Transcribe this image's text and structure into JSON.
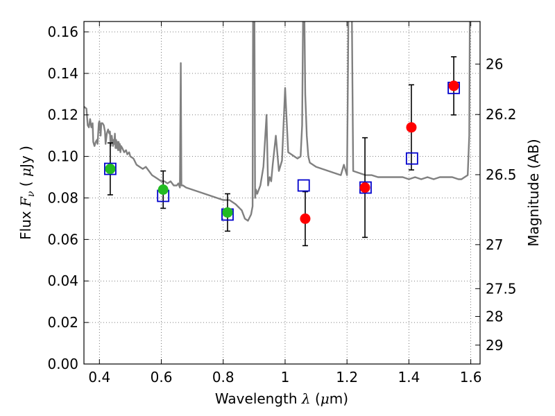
{
  "chart_data": {
    "type": "scatter",
    "xlabel": {
      "prefix": "Wavelength  ",
      "math": "λ",
      "suffix_open": " (",
      "unit_math": "μ",
      "unit_text": "m)"
    },
    "ylabel": {
      "prefix": "Flux  ",
      "math": "F",
      "sub": "ν",
      "suffix_open": "  ( ",
      "unit_math": "μ",
      "unit_text": "Jy )"
    },
    "y2label": "Magnitude (AB)",
    "xlim": [
      0.35,
      1.63
    ],
    "ylim": [
      0.0,
      0.165
    ],
    "grid": true,
    "grid_style": "dotted",
    "x_ticks": [
      0.4,
      0.6,
      0.8,
      1.0,
      1.2,
      1.4,
      1.6
    ],
    "x_tick_labels": [
      "0.4",
      "0.6",
      "0.8",
      "1",
      "1.2",
      "1.4",
      "1.6"
    ],
    "y_ticks": [
      0.0,
      0.02,
      0.04,
      0.06,
      0.08,
      0.1,
      0.12,
      0.14,
      0.16
    ],
    "y_tick_labels": [
      "0.00",
      "0.02",
      "0.04",
      "0.06",
      "0.08",
      "0.10",
      "0.12",
      "0.14",
      "0.16"
    ],
    "y2_ticks": [
      {
        "label": "26",
        "flux": 0.1445
      },
      {
        "label": "26.2",
        "flux": 0.1202
      },
      {
        "label": "26.5",
        "flux": 0.0912
      },
      {
        "label": "27",
        "flux": 0.0575
      },
      {
        "label": "27.5",
        "flux": 0.0363
      },
      {
        "label": "28",
        "flux": 0.0229
      },
      {
        "label": "29",
        "flux": 0.0091
      }
    ],
    "model_spectrum": {
      "color": "#808080",
      "x": [
        0.35,
        0.358,
        0.362,
        0.366,
        0.37,
        0.374,
        0.378,
        0.38,
        0.384,
        0.388,
        0.392,
        0.394,
        0.398,
        0.4,
        0.404,
        0.406,
        0.41,
        0.414,
        0.418,
        0.42,
        0.424,
        0.428,
        0.432,
        0.434,
        0.436,
        0.44,
        0.444,
        0.446,
        0.448,
        0.45,
        0.452,
        0.454,
        0.456,
        0.458,
        0.46,
        0.462,
        0.464,
        0.466,
        0.468,
        0.47,
        0.474,
        0.48,
        0.486,
        0.49,
        0.496,
        0.5,
        0.51,
        0.52,
        0.53,
        0.54,
        0.55,
        0.56,
        0.57,
        0.58,
        0.59,
        0.6,
        0.61,
        0.62,
        0.63,
        0.64,
        0.65,
        0.655,
        0.66,
        0.663,
        0.665,
        0.67,
        0.68,
        0.7,
        0.72,
        0.74,
        0.76,
        0.78,
        0.8,
        0.82,
        0.84,
        0.86,
        0.87,
        0.88,
        0.89,
        0.895,
        0.897,
        0.9,
        0.903,
        0.906,
        0.91,
        0.92,
        0.93,
        0.94,
        0.945,
        0.95,
        0.955,
        0.96,
        0.97,
        0.98,
        0.99,
        1.0,
        1.01,
        1.02,
        1.03,
        1.04,
        1.05,
        1.055,
        1.06,
        1.065,
        1.07,
        1.075,
        1.08,
        1.09,
        1.1,
        1.12,
        1.14,
        1.16,
        1.18,
        1.19,
        1.2,
        1.203,
        1.206,
        1.21,
        1.212,
        1.214,
        1.22,
        1.24,
        1.26,
        1.28,
        1.3,
        1.32,
        1.34,
        1.36,
        1.38,
        1.4,
        1.42,
        1.44,
        1.46,
        1.48,
        1.5,
        1.52,
        1.54,
        1.56,
        1.57,
        1.58,
        1.59,
        1.595,
        1.598,
        1.6,
        1.605,
        1.61,
        1.62,
        1.63
      ],
      "y": [
        0.124,
        0.123,
        0.115,
        0.114,
        0.118,
        0.114,
        0.116,
        0.107,
        0.105,
        0.107,
        0.108,
        0.106,
        0.116,
        0.117,
        0.11,
        0.116,
        0.116,
        0.115,
        0.112,
        0.106,
        0.111,
        0.113,
        0.111,
        0.112,
        0.105,
        0.11,
        0.105,
        0.108,
        0.106,
        0.111,
        0.104,
        0.108,
        0.104,
        0.107,
        0.103,
        0.107,
        0.103,
        0.106,
        0.102,
        0.105,
        0.104,
        0.102,
        0.103,
        0.101,
        0.102,
        0.1,
        0.099,
        0.096,
        0.095,
        0.094,
        0.095,
        0.093,
        0.091,
        0.09,
        0.089,
        0.088,
        0.088,
        0.087,
        0.088,
        0.086,
        0.086,
        0.087,
        0.085,
        0.145,
        0.086,
        0.086,
        0.085,
        0.084,
        0.083,
        0.082,
        0.081,
        0.08,
        0.079,
        0.079,
        0.077,
        0.074,
        0.07,
        0.069,
        0.072,
        0.076,
        0.2,
        0.2,
        0.08,
        0.084,
        0.082,
        0.086,
        0.095,
        0.12,
        0.086,
        0.09,
        0.088,
        0.096,
        0.11,
        0.093,
        0.098,
        0.133,
        0.102,
        0.101,
        0.1,
        0.099,
        0.1,
        0.115,
        0.2,
        0.13,
        0.11,
        0.1,
        0.097,
        0.096,
        0.095,
        0.094,
        0.093,
        0.092,
        0.091,
        0.096,
        0.091,
        0.138,
        0.2,
        0.2,
        0.2,
        0.2,
        0.093,
        0.092,
        0.091,
        0.091,
        0.09,
        0.09,
        0.09,
        0.09,
        0.09,
        0.089,
        0.09,
        0.089,
        0.09,
        0.089,
        0.09,
        0.09,
        0.09,
        0.089,
        0.089,
        0.09,
        0.091,
        0.11,
        0.2,
        0.2,
        0.2,
        0.2,
        0.2,
        0.2
      ]
    },
    "model_photometry": {
      "color": "#0000cc",
      "marker": "open-square",
      "points": [
        {
          "x": 0.435,
          "y": 0.094
        },
        {
          "x": 0.606,
          "y": 0.081
        },
        {
          "x": 0.814,
          "y": 0.072
        },
        {
          "x": 1.06,
          "y": 0.086
        },
        {
          "x": 1.26,
          "y": 0.085
        },
        {
          "x": 1.41,
          "y": 0.099
        },
        {
          "x": 1.545,
          "y": 0.133
        }
      ]
    },
    "observed_optical": {
      "color": "#22bb22",
      "marker": "filled-circle",
      "points": [
        {
          "x": 0.435,
          "y": 0.094,
          "err": 0.0125
        },
        {
          "x": 0.606,
          "y": 0.084,
          "err": 0.009
        },
        {
          "x": 0.814,
          "y": 0.073,
          "err": 0.009
        }
      ]
    },
    "observed_nir": {
      "color": "#ff0000",
      "marker": "filled-circle",
      "points": [
        {
          "x": 1.065,
          "y": 0.07,
          "err": 0.013
        },
        {
          "x": 1.258,
          "y": 0.085,
          "err": 0.024
        },
        {
          "x": 1.408,
          "y": 0.114,
          "err": 0.0205
        },
        {
          "x": 1.545,
          "y": 0.134,
          "err": 0.014
        }
      ]
    }
  }
}
